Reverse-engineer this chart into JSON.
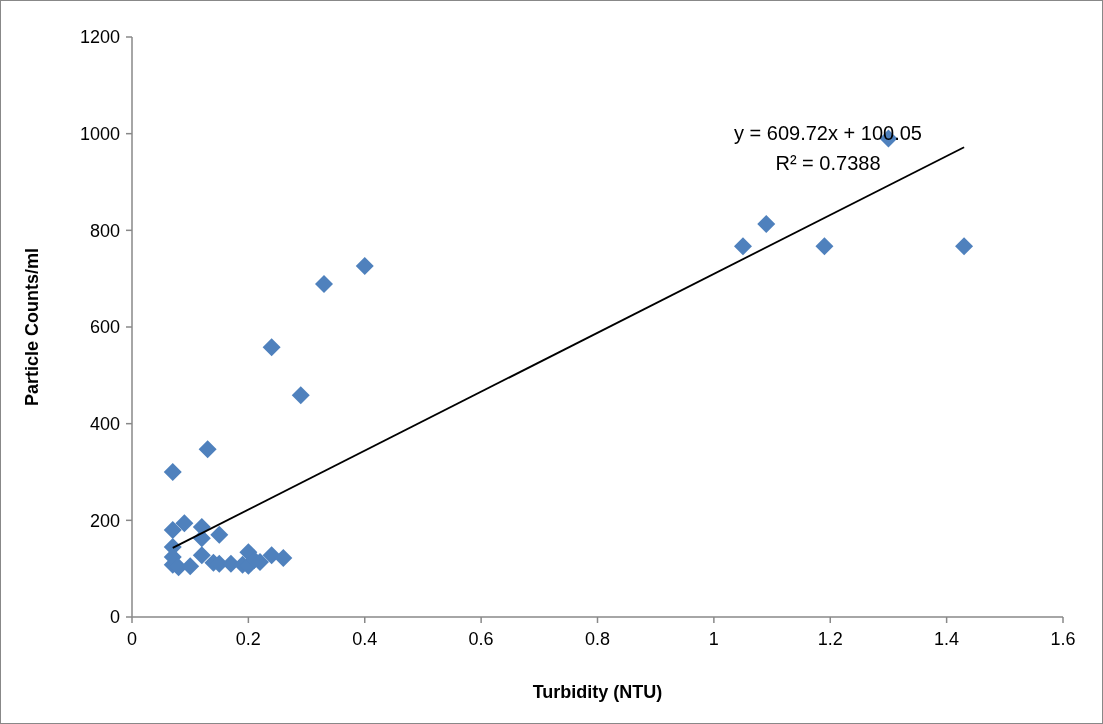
{
  "chart_data": {
    "type": "scatter",
    "xlabel": "Turbidity (NTU)",
    "ylabel": "Particle Counts/ml",
    "xlim": [
      0,
      1.6
    ],
    "xticks": [
      0,
      0.2,
      0.4,
      0.6,
      0.8,
      1,
      1.2,
      1.4,
      1.6
    ],
    "ylim": [
      0,
      1200
    ],
    "yticks": [
      0,
      200,
      400,
      600,
      800,
      1000,
      1200
    ],
    "grid": false,
    "series": [
      {
        "color": "#4f81bd",
        "marker": "diamond",
        "x": [
          0.07,
          0.13,
          0.07,
          0.09,
          0.12,
          0.15,
          0.12,
          0.07,
          0.2,
          0.07,
          0.12,
          0.07,
          0.08,
          0.1,
          0.14,
          0.15,
          0.17,
          0.19,
          0.2,
          0.21,
          0.22,
          0.24,
          0.26,
          0.24,
          0.29,
          0.33,
          0.4,
          1.05,
          1.09,
          1.19,
          1.43,
          1.3
        ],
        "values": [
          300,
          347,
          180,
          194,
          186,
          170,
          163,
          145,
          134,
          124,
          128,
          108,
          103,
          105,
          112,
          110,
          110,
          108,
          106,
          118,
          114,
          128,
          122,
          558,
          459,
          689,
          726,
          767,
          813,
          767,
          767,
          990
        ]
      },
      {
        "type": "line",
        "color": "#000000",
        "x": [
          0.07,
          1.43
        ],
        "values": [
          143,
          972
        ]
      }
    ],
    "annotations": [
      "y = 609.72x + 100.05",
      "R² = 0.7388"
    ]
  }
}
